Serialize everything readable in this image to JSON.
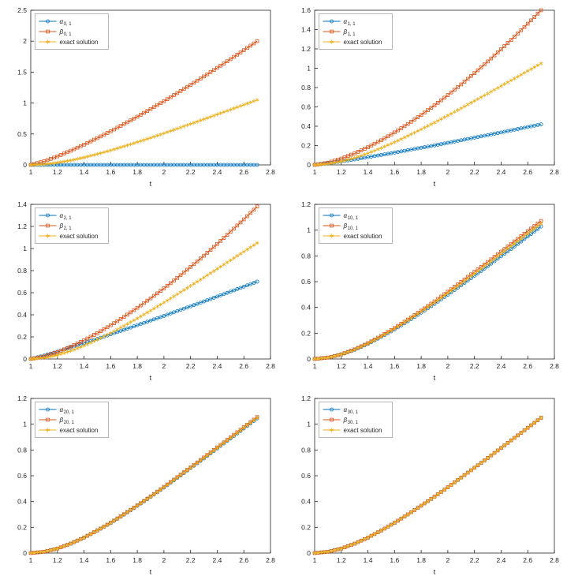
{
  "page": {
    "background": "#ffffff"
  },
  "style": {
    "axis_color": "#262626",
    "legend_border_color": "#a6a6a6",
    "alpha_color": "#0072BD",
    "beta_color": "#D95319",
    "exact_color": "#EDB120"
  },
  "chart_data": [
    {
      "type": "line",
      "title": "",
      "xlabel": "t",
      "ylabel": "",
      "xlim": [
        1,
        2.8
      ],
      "ylim": [
        0,
        2.5
      ],
      "xticks": [
        1,
        1.2,
        1.4,
        1.6,
        1.8,
        2,
        2.2,
        2.4,
        2.6,
        2.8
      ],
      "yticks": [
        0,
        0.5,
        1,
        1.5,
        2,
        2.5
      ],
      "grid": false,
      "legend_position": "top-left",
      "x": [
        1,
        1.1,
        1.2,
        1.3,
        1.4,
        1.5,
        1.6,
        1.7,
        1.8,
        1.9,
        2,
        2.1,
        2.2,
        2.3,
        2.4,
        2.5,
        2.6,
        2.7
      ],
      "series": [
        {
          "name": "alpha_0_1",
          "legend_main": "α",
          "legend_sub": "0, 1",
          "marker": "circle",
          "color": "#0072BD",
          "values": [
            0,
            0,
            0,
            0,
            0,
            0,
            0,
            0,
            0,
            0,
            0,
            0,
            0,
            0,
            0,
            0,
            0,
            0
          ]
        },
        {
          "name": "beta_0_1",
          "legend_main": "β",
          "legend_sub": "0, 1",
          "marker": "square",
          "color": "#D95319",
          "values": [
            0,
            0.058,
            0.138,
            0.229,
            0.328,
            0.433,
            0.544,
            0.66,
            0.779,
            0.903,
            1.03,
            1.161,
            1.294,
            1.43,
            1.569,
            1.71,
            1.854,
            2
          ]
        },
        {
          "name": "exact_solution",
          "legend_main": "exact solution",
          "legend_sub": "",
          "marker": "asterisk",
          "color": "#EDB120",
          "values": [
            0,
            0.01,
            0.035,
            0.073,
            0.12,
            0.175,
            0.235,
            0.3,
            0.368,
            0.438,
            0.511,
            0.586,
            0.662,
            0.738,
            0.816,
            0.894,
            0.972,
            1.05
          ]
        }
      ]
    },
    {
      "type": "line",
      "title": "",
      "xlabel": "t",
      "ylabel": "",
      "xlim": [
        1,
        2.8
      ],
      "ylim": [
        0,
        1.6
      ],
      "xticks": [
        1,
        1.2,
        1.4,
        1.6,
        1.8,
        2,
        2.2,
        2.4,
        2.6,
        2.8
      ],
      "yticks": [
        0,
        0.2,
        0.4,
        0.6,
        0.8,
        1,
        1.2,
        1.4,
        1.6
      ],
      "grid": false,
      "legend_position": "top-left",
      "x": [
        1,
        1.1,
        1.2,
        1.3,
        1.4,
        1.5,
        1.6,
        1.7,
        1.8,
        1.9,
        2,
        2.1,
        2.2,
        2.3,
        2.4,
        2.5,
        2.6,
        2.7
      ],
      "series": [
        {
          "name": "alpha_1_1",
          "legend_main": "α",
          "legend_sub": "1, 1",
          "marker": "circle",
          "color": "#0072BD",
          "values": [
            0,
            0.016,
            0.036,
            0.057,
            0.08,
            0.103,
            0.127,
            0.152,
            0.177,
            0.202,
            0.228,
            0.255,
            0.282,
            0.309,
            0.336,
            0.364,
            0.392,
            0.42
          ]
        },
        {
          "name": "beta_1_1",
          "legend_main": "β",
          "legend_sub": "1, 1",
          "marker": "square",
          "color": "#D95319",
          "values": [
            0,
            0.023,
            0.065,
            0.119,
            0.183,
            0.255,
            0.336,
            0.423,
            0.517,
            0.616,
            0.722,
            0.833,
            0.949,
            1.07,
            1.196,
            1.326,
            1.461,
            1.6
          ]
        },
        {
          "name": "exact_solution",
          "legend_main": "exact solution",
          "legend_sub": "",
          "marker": "asterisk",
          "color": "#EDB120",
          "values": [
            0,
            0.01,
            0.035,
            0.073,
            0.12,
            0.175,
            0.235,
            0.3,
            0.368,
            0.438,
            0.511,
            0.586,
            0.662,
            0.738,
            0.816,
            0.894,
            0.972,
            1.05
          ]
        }
      ]
    },
    {
      "type": "line",
      "title": "",
      "xlabel": "t",
      "ylabel": "",
      "xlim": [
        1,
        2.8
      ],
      "ylim": [
        0,
        1.4
      ],
      "xticks": [
        1,
        1.2,
        1.4,
        1.6,
        1.8,
        2,
        2.2,
        2.4,
        2.6,
        2.8
      ],
      "yticks": [
        0,
        0.2,
        0.4,
        0.6,
        0.8,
        1,
        1.2,
        1.4
      ],
      "grid": false,
      "legend_position": "top-left",
      "x": [
        1,
        1.1,
        1.2,
        1.3,
        1.4,
        1.5,
        1.6,
        1.7,
        1.8,
        1.9,
        2,
        2.1,
        2.2,
        2.3,
        2.4,
        2.5,
        2.6,
        2.7
      ],
      "series": [
        {
          "name": "alpha_2_1",
          "legend_main": "α",
          "legend_sub": "2, 1",
          "marker": "circle",
          "color": "#0072BD",
          "values": [
            0,
            0.031,
            0.066,
            0.104,
            0.143,
            0.182,
            0.223,
            0.264,
            0.306,
            0.348,
            0.39,
            0.434,
            0.477,
            0.521,
            0.565,
            0.61,
            0.655,
            0.7
          ]
        },
        {
          "name": "beta_2_1",
          "legend_main": "β",
          "legend_sub": "2, 1",
          "marker": "square",
          "color": "#D95319",
          "values": [
            0,
            0.023,
            0.062,
            0.112,
            0.169,
            0.234,
            0.305,
            0.381,
            0.463,
            0.549,
            0.639,
            0.734,
            0.833,
            0.935,
            1.041,
            1.152,
            1.264,
            1.38
          ]
        },
        {
          "name": "exact_solution",
          "legend_main": "exact solution",
          "legend_sub": "",
          "marker": "asterisk",
          "color": "#EDB120",
          "values": [
            0,
            0.01,
            0.035,
            0.073,
            0.12,
            0.175,
            0.235,
            0.3,
            0.368,
            0.438,
            0.511,
            0.586,
            0.662,
            0.738,
            0.816,
            0.894,
            0.972,
            1.05
          ]
        }
      ]
    },
    {
      "type": "line",
      "title": "",
      "xlabel": "t",
      "ylabel": "",
      "xlim": [
        1,
        2.8
      ],
      "ylim": [
        0,
        1.2
      ],
      "xticks": [
        1,
        1.2,
        1.4,
        1.6,
        1.8,
        2,
        2.2,
        2.4,
        2.6,
        2.8
      ],
      "yticks": [
        0,
        0.2,
        0.4,
        0.6,
        0.8,
        1,
        1.2
      ],
      "grid": false,
      "legend_position": "top-left",
      "x": [
        1,
        1.1,
        1.2,
        1.3,
        1.4,
        1.5,
        1.6,
        1.7,
        1.8,
        1.9,
        2,
        2.1,
        2.2,
        2.3,
        2.4,
        2.5,
        2.6,
        2.7
      ],
      "series": [
        {
          "name": "alpha_10_1",
          "legend_main": "α",
          "legend_sub": "10, 1",
          "marker": "circle",
          "color": "#0072BD",
          "values": [
            0,
            0.01,
            0.034,
            0.071,
            0.117,
            0.171,
            0.229,
            0.293,
            0.359,
            0.427,
            0.499,
            0.572,
            0.646,
            0.72,
            0.797,
            0.873,
            0.95,
            1.028
          ]
        },
        {
          "name": "beta_10_1",
          "legend_main": "β",
          "legend_sub": "10, 1",
          "marker": "square",
          "color": "#D95319",
          "values": [
            0,
            0.011,
            0.036,
            0.075,
            0.123,
            0.179,
            0.24,
            0.306,
            0.375,
            0.447,
            0.522,
            0.598,
            0.676,
            0.753,
            0.833,
            0.912,
            0.992,
            1.071
          ]
        },
        {
          "name": "exact_solution",
          "legend_main": "exact solution",
          "legend_sub": "",
          "marker": "asterisk",
          "color": "#EDB120",
          "values": [
            0,
            0.01,
            0.035,
            0.073,
            0.12,
            0.175,
            0.235,
            0.3,
            0.368,
            0.438,
            0.511,
            0.586,
            0.662,
            0.738,
            0.816,
            0.894,
            0.972,
            1.05
          ]
        }
      ]
    },
    {
      "type": "line",
      "title": "",
      "xlabel": "t",
      "ylabel": "",
      "xlim": [
        1,
        2.8
      ],
      "ylim": [
        0,
        1.2
      ],
      "xticks": [
        1,
        1.2,
        1.4,
        1.6,
        1.8,
        2,
        2.2,
        2.4,
        2.6,
        2.8
      ],
      "yticks": [
        0,
        0.2,
        0.4,
        0.6,
        0.8,
        1,
        1.2
      ],
      "grid": false,
      "legend_position": "top-left",
      "x": [
        1,
        1.1,
        1.2,
        1.3,
        1.4,
        1.5,
        1.6,
        1.7,
        1.8,
        1.9,
        2,
        2.1,
        2.2,
        2.3,
        2.4,
        2.5,
        2.6,
        2.7
      ],
      "series": [
        {
          "name": "alpha_20_1",
          "legend_main": "α",
          "legend_sub": "20, 1",
          "marker": "circle",
          "color": "#0072BD",
          "values": [
            0,
            0.01,
            0.035,
            0.072,
            0.119,
            0.174,
            0.233,
            0.298,
            0.366,
            0.436,
            0.508,
            0.583,
            0.659,
            0.734,
            0.812,
            0.889,
            0.967,
            1.045
          ]
        },
        {
          "name": "beta_20_1",
          "legend_main": "β",
          "legend_sub": "20, 1",
          "marker": "square",
          "color": "#D95319",
          "values": [
            0,
            0.01,
            0.035,
            0.074,
            0.121,
            0.176,
            0.236,
            0.302,
            0.37,
            0.44,
            0.514,
            0.589,
            0.665,
            0.742,
            0.82,
            0.898,
            0.977,
            1.055
          ]
        },
        {
          "name": "exact_solution",
          "legend_main": "exact solution",
          "legend_sub": "",
          "marker": "asterisk",
          "color": "#EDB120",
          "values": [
            0,
            0.01,
            0.035,
            0.073,
            0.12,
            0.175,
            0.235,
            0.3,
            0.368,
            0.438,
            0.511,
            0.586,
            0.662,
            0.738,
            0.816,
            0.894,
            0.972,
            1.05
          ]
        }
      ]
    },
    {
      "type": "line",
      "title": "",
      "xlabel": "t",
      "ylabel": "",
      "xlim": [
        1,
        2.8
      ],
      "ylim": [
        0,
        1.2
      ],
      "xticks": [
        1,
        1.2,
        1.4,
        1.6,
        1.8,
        2,
        2.2,
        2.4,
        2.6,
        2.8
      ],
      "yticks": [
        0,
        0.2,
        0.4,
        0.6,
        0.8,
        1,
        1.2
      ],
      "grid": false,
      "legend_position": "top-left",
      "x": [
        1,
        1.1,
        1.2,
        1.3,
        1.4,
        1.5,
        1.6,
        1.7,
        1.8,
        1.9,
        2,
        2.1,
        2.2,
        2.3,
        2.4,
        2.5,
        2.6,
        2.7
      ],
      "series": [
        {
          "name": "alpha_30_1",
          "legend_main": "α",
          "legend_sub": "30, 1",
          "marker": "circle",
          "color": "#0072BD",
          "values": [
            0,
            0.01,
            0.035,
            0.073,
            0.12,
            0.175,
            0.235,
            0.3,
            0.368,
            0.438,
            0.511,
            0.586,
            0.662,
            0.738,
            0.816,
            0.894,
            0.972,
            1.05
          ]
        },
        {
          "name": "beta_30_1",
          "legend_main": "β",
          "legend_sub": "30, 1",
          "marker": "square",
          "color": "#D95319",
          "values": [
            0,
            0.01,
            0.035,
            0.073,
            0.12,
            0.175,
            0.235,
            0.3,
            0.368,
            0.438,
            0.511,
            0.586,
            0.662,
            0.738,
            0.816,
            0.894,
            0.972,
            1.05
          ]
        },
        {
          "name": "exact_solution",
          "legend_main": "exact solution",
          "legend_sub": "",
          "marker": "asterisk",
          "color": "#EDB120",
          "values": [
            0,
            0.01,
            0.035,
            0.073,
            0.12,
            0.175,
            0.235,
            0.3,
            0.368,
            0.438,
            0.511,
            0.586,
            0.662,
            0.738,
            0.816,
            0.894,
            0.972,
            1.05
          ]
        }
      ]
    }
  ]
}
